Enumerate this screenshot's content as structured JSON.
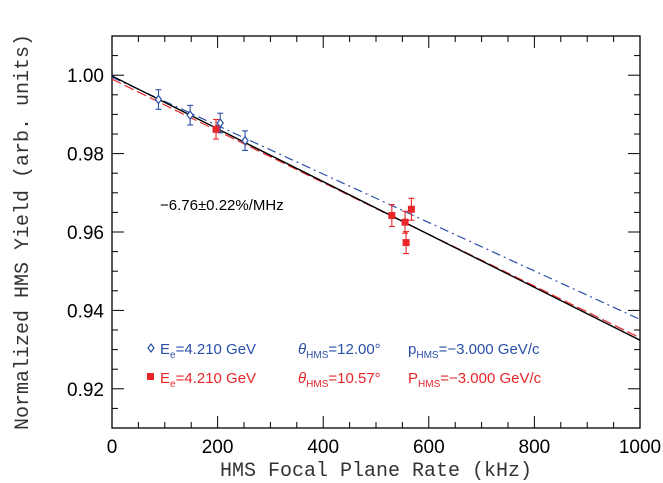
{
  "chart_data": {
    "type": "scatter",
    "xlabel": "HMS Focal Plane Rate (kHz)",
    "ylabel": "Normalized HMS Yield (arb. units)",
    "xlim": [
      0,
      1000
    ],
    "ylim": [
      0.91,
      1.01
    ],
    "x_ticks": [
      0,
      200,
      400,
      600,
      800,
      1000
    ],
    "y_ticks": [
      0.92,
      0.94,
      0.96,
      0.98,
      1.0
    ],
    "x_tick_labels": [
      "0",
      "200",
      "400",
      "600",
      "800",
      "1000"
    ],
    "y_tick_labels": [
      "0.92",
      "0.94",
      "0.96",
      "0.98",
      "1.00"
    ],
    "annotation": "−6.76±0.22%/MHz",
    "series": [
      {
        "color": "#2a4fa8",
        "marker": "diamond-open",
        "legend": {
          "e_main": "E",
          "e_sub": "e",
          "e_val": "=4.210 GeV",
          "t_main": "θ",
          "t_sub": "HMS",
          "t_val": "=12.00°",
          "p_main": "p",
          "p_sub": "HMS",
          "p_val": "=−3.000 GeV/c"
        },
        "points": [
          {
            "x": 88,
            "y": 0.9938,
            "err": 0.0025
          },
          {
            "x": 148,
            "y": 0.9898,
            "err": 0.0025
          },
          {
            "x": 205,
            "y": 0.9878,
            "err": 0.0025
          },
          {
            "x": 252,
            "y": 0.9833,
            "err": 0.0025
          }
        ],
        "fit": {
          "x": [
            0,
            1000
          ],
          "y": [
            0.9995,
            0.9377
          ],
          "style": "dash-dot"
        }
      },
      {
        "color": "#e8262a",
        "marker": "square-filled",
        "legend": {
          "e_main": "E",
          "e_sub": "e",
          "e_val": "=4.210 GeV",
          "t_main": "θ",
          "t_sub": "HMS",
          "t_val": "=10.57°",
          "p_main": "P",
          "p_sub": "HMS",
          "p_val": "=−3.000 GeV/c"
        },
        "points": [
          {
            "x": 197,
            "y": 0.9862,
            "err": 0.0025
          },
          {
            "x": 530,
            "y": 0.9642,
            "err": 0.0028
          },
          {
            "x": 555,
            "y": 0.9625,
            "err": 0.0028
          },
          {
            "x": 557,
            "y": 0.9573,
            "err": 0.0028
          },
          {
            "x": 567,
            "y": 0.9658,
            "err": 0.0028
          }
        ],
        "fit": {
          "x": [
            0,
            1000
          ],
          "y": [
            0.999,
            0.933
          ],
          "style": "dashed"
        }
      }
    ],
    "combined_fit": {
      "color": "#000000",
      "x": [
        0,
        1000
      ],
      "y": [
        0.9998,
        0.9324
      ],
      "style": "solid"
    }
  }
}
